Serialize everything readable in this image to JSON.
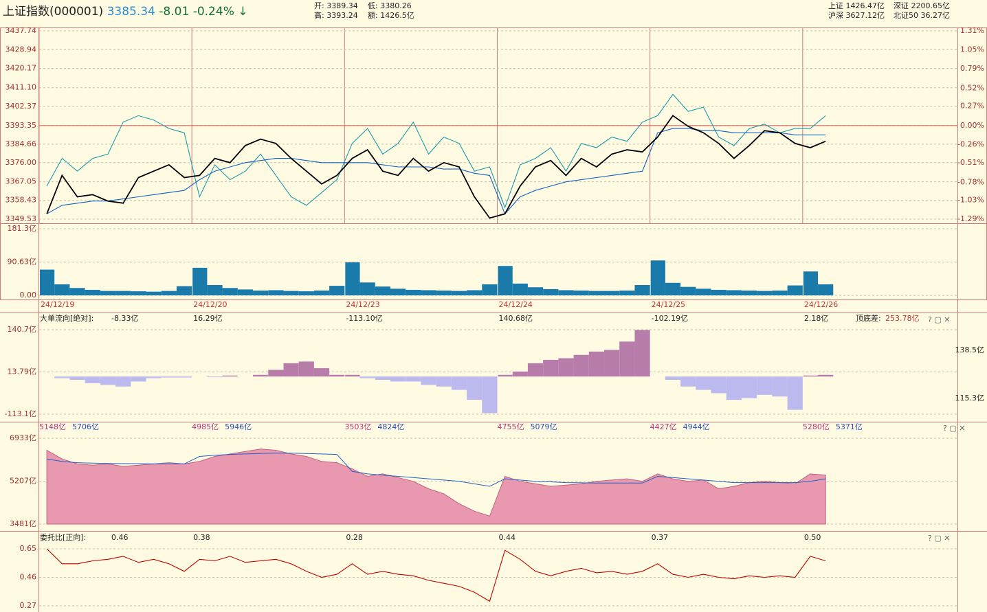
{
  "header": {
    "title": "上证指数(000001)",
    "price": "3385.34",
    "change": "-8.01",
    "pct": "-0.24%",
    "open": "开: 3389.34",
    "low": "低: 3380.26",
    "high": "高: 3393.24",
    "amount": "额: 1426.5亿",
    "sh": "上证 1426.47亿",
    "sz": "深证 2200.65亿",
    "hs": "沪深 3627.12亿",
    "bz": "北证50 36.27亿"
  },
  "dates": [
    "24/12/19",
    "24/12/20",
    "24/12/23",
    "24/12/24",
    "24/12/25",
    "24/12/26"
  ],
  "chart_data": [
    {
      "type": "line",
      "ylim": [
        3349.53,
        3437.74
      ],
      "yticks": [
        3437.74,
        3428.94,
        3420.17,
        {
          "value": 3411.1,
          "label": "3411.10"
        },
        3402.37,
        3393.35,
        3384.66,
        {
          "value": 3376,
          "label": "3376.00"
        },
        3367.05,
        3358.43,
        3349.53
      ],
      "y2lim": [
        -1.29,
        1.31
      ],
      "y2ticks": [
        {
          "value": 1.31,
          "label": "1.31%"
        },
        {
          "value": 1.05,
          "label": "1.05%"
        },
        {
          "value": 0.79,
          "label": "0.79%"
        },
        {
          "value": 0.52,
          "label": "0.52%"
        },
        {
          "value": 0.27,
          "label": "0.27%"
        },
        {
          "value": 0,
          "label": "0.00%"
        },
        {
          "value": -0.26,
          "label": "-0.26%"
        },
        {
          "value": -0.51,
          "label": "-0.51%"
        },
        {
          "value": -0.78,
          "label": "-0.78%"
        },
        {
          "value": -1.03,
          "label": "-1.03%"
        },
        {
          "value": -1.29,
          "label": "-1.29%"
        }
      ],
      "baseline": 3393.35,
      "grid": true,
      "series": [
        {
          "color": "#1a9aaa",
          "values": [
            3365,
            3378,
            3372,
            3378,
            3380,
            3395,
            3398,
            3396,
            3392,
            3390,
            3360,
            3375,
            3368,
            3372,
            3380,
            3370,
            3360,
            3356,
            3362,
            3368,
            3385,
            3392,
            3380,
            3385,
            3395,
            3380,
            3388,
            3385,
            3372,
            3374,
            3355,
            3375,
            3378,
            3383,
            3372,
            3385,
            3383,
            3388,
            3386,
            3395,
            3398,
            3408,
            3400,
            3402,
            3388,
            3384,
            3392,
            3394,
            3390,
            3392,
            3392,
            3398
          ]
        },
        {
          "color": "#1060c0",
          "values": [
            3352,
            3356,
            3357,
            3358,
            3358,
            3359,
            3360,
            3361,
            3362,
            3363,
            3368,
            3372,
            3374,
            3376,
            3377,
            3378,
            3378,
            3377,
            3376,
            3376,
            3376,
            3376,
            3375,
            3374,
            3374,
            3374,
            3373,
            3373,
            3371,
            3370,
            3352,
            3360,
            3363,
            3365,
            3367,
            3368,
            3369,
            3370,
            3371,
            3372,
            3390,
            3392,
            3392,
            3391,
            3391,
            3390,
            3390,
            3390,
            3390,
            3389,
            3389,
            3389
          ]
        },
        {
          "color": "#000000",
          "values": [
            3352,
            3370,
            3360,
            3361,
            3358,
            3357,
            3369,
            3372,
            3375,
            3369,
            3370,
            3378,
            3376,
            3384,
            3387,
            3385,
            3378,
            3372,
            3366,
            3370,
            3378,
            3382,
            3372,
            3370,
            3378,
            3372,
            3376,
            3374,
            3360,
            3350,
            3352,
            3365,
            3374,
            3377,
            3370,
            3378,
            3374,
            3380,
            3382,
            3381,
            3388,
            3398,
            3393,
            3390,
            3385,
            3378,
            3384,
            3391,
            3390,
            3385,
            3383,
            3386
          ]
        }
      ]
    },
    {
      "type": "bar",
      "color": "#1a7aaa",
      "ylim": [
        0,
        181.3
      ],
      "yticks": [
        {
          "value": 0,
          "label": "0.00"
        },
        {
          "value": 90.63,
          "label": "90.63亿"
        },
        {
          "value": 181.3,
          "label": "181.3亿"
        }
      ],
      "values": [
        70,
        30,
        20,
        15,
        12,
        12,
        11,
        10,
        12,
        25,
        75,
        28,
        20,
        16,
        13,
        14,
        12,
        11,
        13,
        26,
        90,
        35,
        24,
        18,
        15,
        14,
        13,
        12,
        14,
        30,
        80,
        32,
        22,
        17,
        14,
        13,
        12,
        12,
        13,
        28,
        95,
        34,
        23,
        18,
        15,
        14,
        13,
        12,
        13,
        27,
        65,
        30
      ]
    },
    {
      "type": "bar",
      "label": "大单流向[绝对]:",
      "day_labels": [
        "-8.33亿",
        "16.29亿",
        "-113.10亿",
        "140.68亿",
        "-102.19亿",
        "2.18亿"
      ],
      "diff_label": "顶底差:",
      "diff": "253.78亿",
      "right_ticks": [
        "138.5亿",
        "115.3亿"
      ],
      "pos_color": "#b87cab",
      "neg_color": "#bbb9ee",
      "ylim": [
        -113.1,
        140.7
      ],
      "yticks": [
        {
          "value": -113.1,
          "label": "-113.1亿"
        },
        {
          "value": 13.79,
          "label": "13.79亿"
        },
        {
          "value": 140.7,
          "label": "140.7亿"
        }
      ],
      "values": [
        0,
        -5,
        -10,
        -20,
        -25,
        -30,
        -15,
        -5,
        -3,
        -3,
        0,
        -2,
        3,
        0,
        5,
        20,
        40,
        45,
        25,
        5,
        5,
        -5,
        -10,
        -15,
        -15,
        -25,
        -30,
        -40,
        -70,
        -110,
        5,
        15,
        40,
        50,
        55,
        65,
        75,
        80,
        105,
        140,
        0,
        -10,
        -30,
        -40,
        -50,
        -70,
        -65,
        -55,
        -60,
        -100,
        3,
        5
      ]
    },
    {
      "type": "area",
      "day_labels": [
        [
          "5148亿",
          "5706亿"
        ],
        [
          "4985亿",
          "5946亿"
        ],
        [
          "3503亿",
          "4824亿"
        ],
        [
          "4755亿",
          "5079亿"
        ],
        [
          "4427亿",
          "4944亿"
        ],
        [
          "5280亿",
          "5371亿"
        ]
      ],
      "ylim": [
        3481,
        6933
      ],
      "yticks": [
        {
          "value": 3481,
          "label": "3481亿"
        },
        {
          "value": 5207,
          "label": "5207亿"
        },
        {
          "value": 6933,
          "label": "6933亿"
        }
      ],
      "series": [
        {
          "color": "#e899b0",
          "values": [
            6450,
            6100,
            5900,
            5850,
            5900,
            5800,
            5850,
            5900,
            5950,
            5900,
            6000,
            6200,
            6300,
            6400,
            6500,
            6450,
            6300,
            6200,
            6000,
            5950,
            5700,
            5400,
            5500,
            5350,
            5200,
            4900,
            4700,
            4300,
            4000,
            3800,
            5400,
            5200,
            5100,
            5000,
            5050,
            5100,
            5200,
            5250,
            5300,
            5200,
            5500,
            5300,
            5200,
            5250,
            4900,
            5000,
            5150,
            5200,
            5150,
            5100,
            5500,
            5450
          ]
        },
        {
          "color": "#2060c0",
          "values": [
            6100,
            6000,
            5950,
            5930,
            5920,
            5910,
            5910,
            5900,
            5900,
            5900,
            6200,
            6250,
            6280,
            6300,
            6320,
            6330,
            6330,
            6320,
            6300,
            6280,
            5600,
            5500,
            5450,
            5400,
            5350,
            5300,
            5250,
            5200,
            5100,
            5000,
            5300,
            5250,
            5200,
            5180,
            5150,
            5140,
            5130,
            5130,
            5130,
            5130,
            5400,
            5350,
            5300,
            5250,
            5200,
            5150,
            5150,
            5150,
            5150,
            5150,
            5200,
            5300
          ]
        }
      ]
    },
    {
      "type": "line",
      "label": "委托比[正向]:",
      "day_labels": [
        "0.46",
        "0.38",
        "0.28",
        "0.44",
        "0.37",
        "0.50"
      ],
      "ylim": [
        0.27,
        0.65
      ],
      "yticks": [
        0.27,
        0.46,
        0.65
      ],
      "series": [
        {
          "color": "#c00000",
          "values": [
            0.65,
            0.55,
            0.55,
            0.57,
            0.58,
            0.6,
            0.56,
            0.58,
            0.55,
            0.5,
            0.58,
            0.57,
            0.6,
            0.56,
            0.57,
            0.58,
            0.55,
            0.5,
            0.46,
            0.48,
            0.55,
            0.48,
            0.5,
            0.48,
            0.47,
            0.44,
            0.42,
            0.4,
            0.36,
            0.3,
            0.64,
            0.58,
            0.5,
            0.47,
            0.5,
            0.52,
            0.49,
            0.5,
            0.48,
            0.5,
            0.55,
            0.48,
            0.46,
            0.48,
            0.46,
            0.45,
            0.47,
            0.46,
            0.47,
            0.46,
            0.6,
            0.57
          ]
        }
      ]
    }
  ]
}
